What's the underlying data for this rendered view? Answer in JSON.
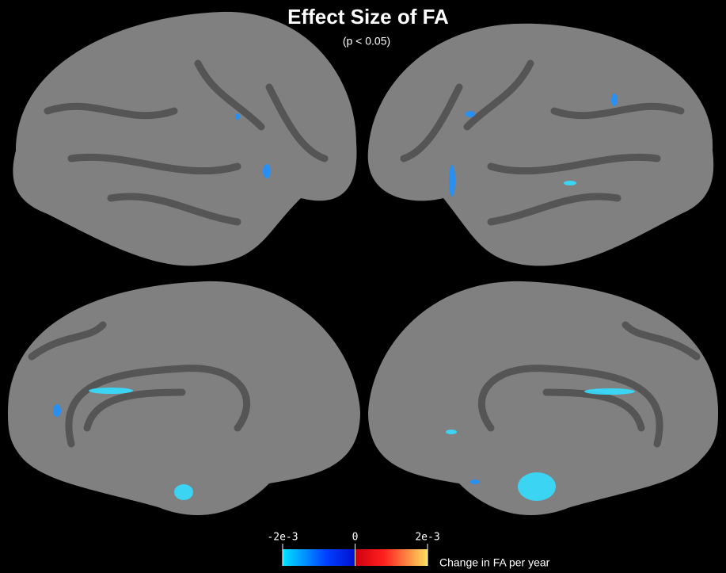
{
  "header": {
    "title": "Effect Size of FA",
    "subtitle": "(p < 0.05)"
  },
  "colorbar": {
    "range": [
      -0.002,
      0.002
    ],
    "ticks": [
      {
        "value": -0.002,
        "label": "-2e-3"
      },
      {
        "value": 0,
        "label": "0"
      },
      {
        "value": 0.002,
        "label": "2e-3"
      }
    ],
    "label": "Change in FA per year"
  }
}
